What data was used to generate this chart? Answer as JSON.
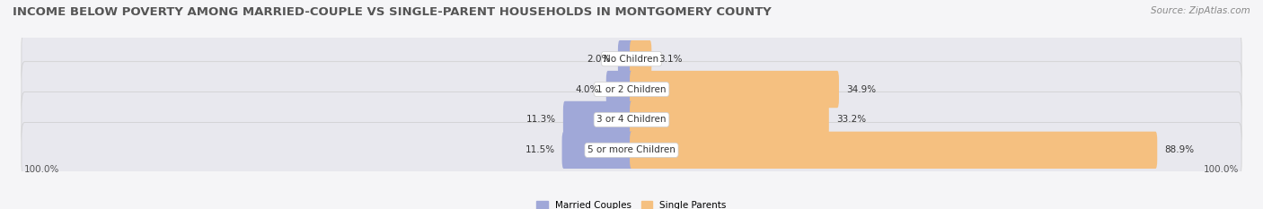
{
  "title": "INCOME BELOW POVERTY AMONG MARRIED-COUPLE VS SINGLE-PARENT HOUSEHOLDS IN MONTGOMERY COUNTY",
  "source": "Source: ZipAtlas.com",
  "categories": [
    "No Children",
    "1 or 2 Children",
    "3 or 4 Children",
    "5 or more Children"
  ],
  "married_values": [
    2.0,
    4.0,
    11.3,
    11.5
  ],
  "single_values": [
    3.1,
    34.9,
    33.2,
    88.9
  ],
  "married_color": "#a0a8d8",
  "single_color": "#f5c080",
  "row_bg_color": "#e8e8ee",
  "max_value": 100.0,
  "left_label": "100.0%",
  "right_label": "100.0%",
  "title_fontsize": 9.5,
  "bar_height": 0.62,
  "background_color": "#f5f5f7"
}
